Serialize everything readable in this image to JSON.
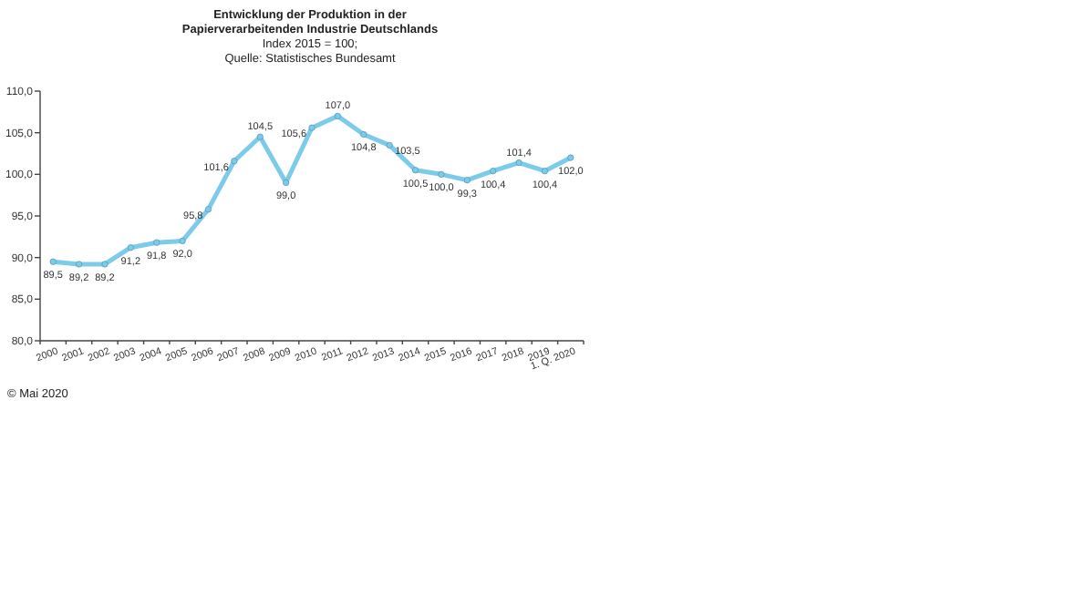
{
  "chart_data": {
    "type": "line",
    "title": "Entwicklung der Produktion in der\nPapierverarbeitenden Industrie Deutschlands",
    "subtitle": "Index 2015  = 100;",
    "annotations": [
      "Quelle:  Statistisches Bundesamt",
      "© Mai 2020"
    ],
    "categories": [
      "2000",
      "2001",
      "2002",
      "2003",
      "2004",
      "2005",
      "2006",
      "2007",
      "2008",
      "2009",
      "2010",
      "2011",
      "2012",
      "2013",
      "2014",
      "2015",
      "2016",
      "2017",
      "2018",
      "2019",
      "1. Q. 2020"
    ],
    "series": [
      {
        "color": "#7ccbeb",
        "values": [
          89.5,
          89.2,
          89.2,
          91.2,
          91.8,
          92.0,
          95.8,
          101.6,
          104.5,
          99.0,
          105.6,
          107.0,
          104.8,
          103.5,
          100.5,
          100.0,
          99.3,
          100.4,
          101.4,
          100.4,
          102.0
        ],
        "value_labels": [
          "89,5",
          "89,2",
          "89,2",
          "91,2",
          "91,8",
          "92,0",
          "95,8",
          "101,6",
          "104,5",
          "99,0",
          "105,6",
          "107,0",
          "104,8",
          "103,5",
          "100,5",
          "100,0",
          "99,3",
          "100,4",
          "101,4",
          "100,4",
          "102,0"
        ]
      }
    ],
    "ylim": [
      80,
      110
    ],
    "yticks": [
      {
        "value": 80,
        "label": "80,0"
      },
      {
        "value": 85,
        "label": "85,0"
      },
      {
        "value": 90,
        "label": "90,0"
      },
      {
        "value": 95,
        "label": "95,0"
      },
      {
        "value": 100,
        "label": "100,0"
      },
      {
        "value": 105,
        "label": "105,0"
      },
      {
        "value": 110,
        "label": "110,0"
      }
    ],
    "marker": "circle",
    "line_style": "solid",
    "grid": false
  }
}
